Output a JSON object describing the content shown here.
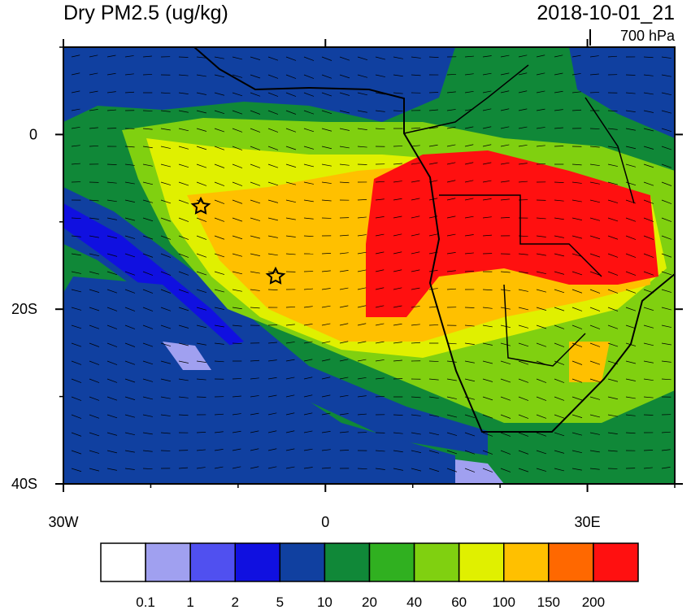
{
  "map": {
    "title": "Dry PM2.5 (ug/kg)",
    "time": "2018-10-01_21",
    "level": "700 hPa",
    "xlim": [
      -30,
      40
    ],
    "ylim": [
      -40,
      10
    ],
    "xticks": [
      {
        "value": -30,
        "label": "30W"
      },
      0,
      {
        "value": 30,
        "label": "30E"
      }
    ],
    "yticks": [
      0,
      {
        "value": -20,
        "label": "20S"
      },
      {
        "value": -40,
        "label": "40S"
      }
    ],
    "colorbar": {
      "levels": [
        0.1,
        1,
        2,
        5,
        10,
        20,
        40,
        60,
        100,
        150,
        200
      ],
      "colors": [
        "#ffffff",
        "#a0a0f0",
        "#5050f0",
        "#1010e0",
        "#1040a0",
        "#108838",
        "#30b020",
        "#80d010",
        "#e0f000",
        "#ffc000",
        "#ff6800",
        "#ff1010"
      ]
    }
  }
}
